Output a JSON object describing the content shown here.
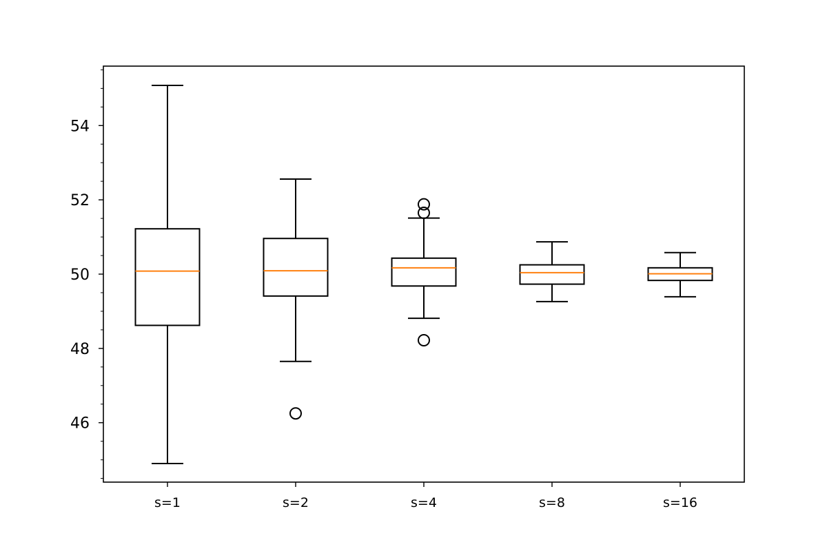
{
  "chart_data": {
    "type": "boxplot",
    "title": "",
    "xlabel": "",
    "ylabel": "",
    "ylim": [
      44.4,
      55.6
    ],
    "yticks": [
      "46",
      "48",
      "50",
      "52",
      "54"
    ],
    "ytick_values": [
      46,
      48,
      50,
      52,
      54
    ],
    "minor_ytick_step": 0.5,
    "grid": false,
    "colors": {
      "box": "#000000",
      "median": "#ff7f0e",
      "background": "#ffffff"
    },
    "categories": [
      "s=1",
      "s=2",
      "s=4",
      "s=8",
      "s=16"
    ],
    "boxes": [
      {
        "label": "s=1",
        "whisker_low": 44.9,
        "q1": 48.62,
        "median": 50.08,
        "q3": 51.22,
        "whisker_high": 55.08,
        "fliers": []
      },
      {
        "label": "s=2",
        "whisker_low": 47.65,
        "q1": 49.41,
        "median": 50.09,
        "q3": 50.96,
        "whisker_high": 52.56,
        "fliers": [
          46.25
        ]
      },
      {
        "label": "s=4",
        "whisker_low": 48.81,
        "q1": 49.68,
        "median": 50.17,
        "q3": 50.43,
        "whisker_high": 51.51,
        "fliers": [
          48.22,
          51.65,
          51.88
        ]
      },
      {
        "label": "s=8",
        "whisker_low": 49.26,
        "q1": 49.73,
        "median": 50.04,
        "q3": 50.25,
        "whisker_high": 50.87,
        "fliers": []
      },
      {
        "label": "s=16",
        "whisker_low": 49.39,
        "q1": 49.83,
        "median": 50.01,
        "q3": 50.17,
        "whisker_high": 50.58,
        "fliers": []
      }
    ]
  }
}
